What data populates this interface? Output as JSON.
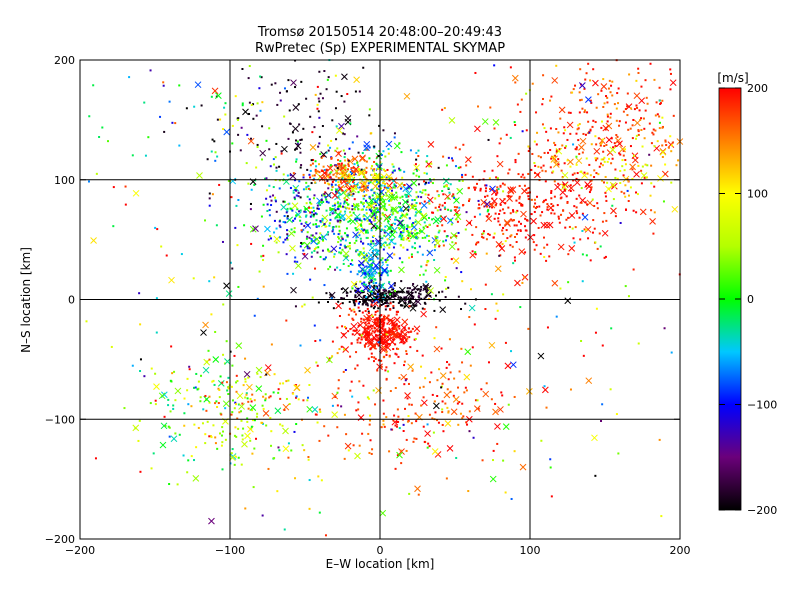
{
  "chart_data": {
    "type": "scatter",
    "title": "Tromsø 20150514 20:48:00–20:49:43",
    "subtitle": "RwPretec (Sp) EXPERIMENTAL SKYMAP",
    "xlabel": "E–W location [km]",
    "ylabel": "N–S location [km]",
    "xlim": [
      -200,
      200
    ],
    "ylim": [
      -200,
      200
    ],
    "xticks": [
      -200,
      -100,
      0,
      100,
      200
    ],
    "yticks": [
      -200,
      -100,
      0,
      100,
      200
    ],
    "xtick_labels": [
      "−200",
      "−100",
      "0",
      "100",
      "200"
    ],
    "ytick_labels": [
      "−200",
      "−100",
      "0",
      "100",
      "200"
    ],
    "gridlines": [
      -100,
      0,
      100
    ],
    "grid": true,
    "marker_types": [
      "dot",
      "x"
    ],
    "colorbar": {
      "label": "[m/s]",
      "range": [
        -200,
        200
      ],
      "ticks": [
        200,
        100,
        0,
        -100,
        -200
      ],
      "tick_labels": [
        "200",
        "100",
        "0",
        "−100",
        "−200"
      ],
      "stops": [
        {
          "v": -200,
          "color": "#000000"
        },
        {
          "v": -150,
          "color": "#6b007a"
        },
        {
          "v": -100,
          "color": "#0000ff"
        },
        {
          "v": -50,
          "color": "#00c8ff"
        },
        {
          "v": 0,
          "color": "#00ff00"
        },
        {
          "v": 50,
          "color": "#b4ff00"
        },
        {
          "v": 100,
          "color": "#ffff00"
        },
        {
          "v": 150,
          "color": "#ff8000"
        },
        {
          "v": 200,
          "color": "#ff0000"
        }
      ]
    },
    "clusters": [
      {
        "name": "origin-black",
        "x": 5,
        "y": 2,
        "sx": 18,
        "sy": 5,
        "n": 260,
        "v": -195,
        "sv": 10
      },
      {
        "name": "south-red",
        "x": 0,
        "y": -27,
        "sx": 12,
        "sy": 10,
        "n": 330,
        "v": 195,
        "sv": 8
      },
      {
        "name": "south-fan",
        "x": 20,
        "y": -85,
        "sx": 35,
        "sy": 30,
        "n": 220,
        "v": 175,
        "sv": 30
      },
      {
        "name": "northeast-red",
        "x": 95,
        "y": 80,
        "sx": 40,
        "sy": 25,
        "n": 420,
        "v": 190,
        "sv": 15
      },
      {
        "name": "northeast-far",
        "x": 150,
        "y": 150,
        "sx": 30,
        "sy": 25,
        "n": 260,
        "v": 180,
        "sv": 25
      },
      {
        "name": "east-yellow",
        "x": 160,
        "y": 110,
        "sx": 25,
        "sy": 15,
        "n": 90,
        "v": 100,
        "sv": 25
      },
      {
        "name": "north-cyan",
        "x": -15,
        "y": 80,
        "sx": 35,
        "sy": 25,
        "n": 600,
        "v": -40,
        "sv": 60
      },
      {
        "name": "north-green",
        "x": 5,
        "y": 60,
        "sx": 25,
        "sy": 18,
        "n": 300,
        "v": 20,
        "sv": 35
      },
      {
        "name": "north-red",
        "x": -25,
        "y": 105,
        "sx": 12,
        "sy": 8,
        "n": 120,
        "v": 170,
        "sv": 25
      },
      {
        "name": "north-yellow",
        "x": -10,
        "y": 100,
        "sx": 10,
        "sy": 8,
        "n": 80,
        "v": 110,
        "sv": 30
      },
      {
        "name": "northwest-black",
        "x": -60,
        "y": 140,
        "sx": 30,
        "sy": 30,
        "n": 120,
        "v": -190,
        "sv": 15
      },
      {
        "name": "column-cyan",
        "x": -5,
        "y": 20,
        "sx": 6,
        "sy": 12,
        "n": 120,
        "v": -60,
        "sv": 30
      },
      {
        "name": "north-blue",
        "x": -40,
        "y": 65,
        "sx": 25,
        "sy": 15,
        "n": 80,
        "v": -110,
        "sv": 20
      },
      {
        "name": "southwest-green",
        "x": -100,
        "y": -95,
        "sx": 30,
        "sy": 25,
        "n": 200,
        "v": 40,
        "sv": 55
      },
      {
        "name": "southwest-orange",
        "x": -90,
        "y": -80,
        "sx": 15,
        "sy": 10,
        "n": 40,
        "v": 150,
        "sv": 30
      },
      {
        "name": "northwest-green",
        "x": -110,
        "y": 150,
        "sx": 40,
        "sy": 30,
        "n": 60,
        "v": 0,
        "sv": 80
      },
      {
        "name": "scatter-all",
        "x": 0,
        "y": 0,
        "sx": 120,
        "sy": 120,
        "n": 450,
        "v": 60,
        "sv": 120
      }
    ]
  }
}
